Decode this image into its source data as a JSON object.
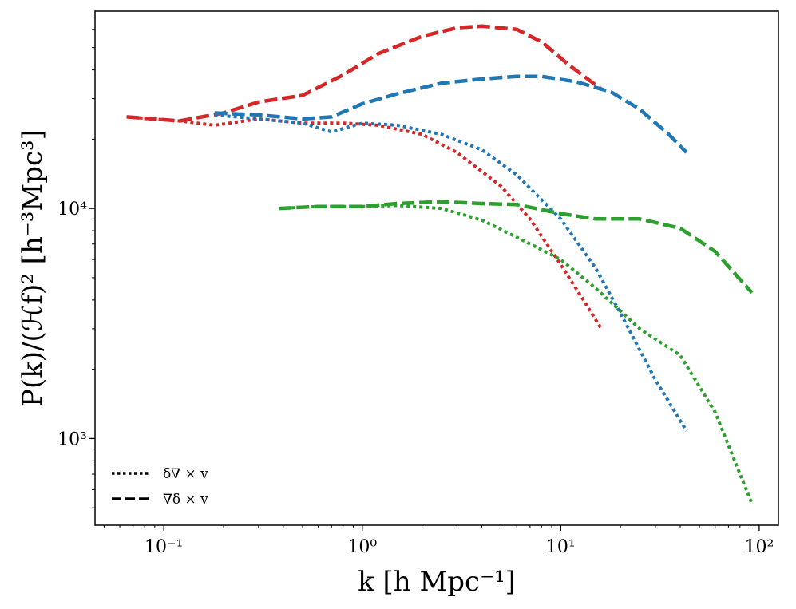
{
  "chart_data": {
    "type": "line",
    "xscale": "log",
    "yscale": "log",
    "xlim": [
      0.045,
      125
    ],
    "ylim": [
      420,
      72000
    ],
    "xlabel": "k [h Mpc⁻¹]",
    "ylabel": "P(k)/(ℋf)² [h⁻³Mpc³]",
    "x_ticks": [
      {
        "value": 0.1,
        "label": "10⁻¹"
      },
      {
        "value": 1,
        "label": "10⁰"
      },
      {
        "value": 10,
        "label": "10¹"
      },
      {
        "value": 100,
        "label": "10²"
      }
    ],
    "y_ticks": [
      {
        "value": 1000,
        "label": "10³"
      },
      {
        "value": 10000,
        "label": "10⁴"
      }
    ],
    "legend": {
      "position": "lower-left",
      "entries": [
        {
          "style": "dotted",
          "label": "δ∇ × v"
        },
        {
          "style": "dashed",
          "label": "∇δ × v"
        }
      ]
    },
    "series": [
      {
        "name": "red-dashed",
        "color": "#d62728",
        "style": "dashed",
        "x": [
          0.065,
          0.12,
          0.2,
          0.3,
          0.5,
          0.8,
          1.2,
          2,
          3,
          4,
          6,
          8,
          11,
          16
        ],
        "y": [
          25000,
          24000,
          26000,
          29000,
          31000,
          38000,
          47000,
          56000,
          61000,
          62000,
          60000,
          53000,
          42000,
          33000
        ]
      },
      {
        "name": "red-dotted",
        "color": "#d62728",
        "style": "dotted",
        "x": [
          0.065,
          0.12,
          0.18,
          0.3,
          0.5,
          0.8,
          1.2,
          2,
          3,
          5,
          7,
          10,
          13,
          16
        ],
        "y": [
          25000,
          24000,
          23000,
          24500,
          23500,
          23500,
          23000,
          21000,
          17500,
          12500,
          9000,
          5700,
          4000,
          3000
        ]
      },
      {
        "name": "blue-dashed",
        "color": "#1f77b4",
        "style": "dashed",
        "x": [
          0.18,
          0.3,
          0.5,
          0.7,
          1,
          1.5,
          2.5,
          4,
          6,
          8,
          12,
          18,
          25,
          35,
          43
        ],
        "y": [
          26000,
          25500,
          24500,
          25000,
          28500,
          31500,
          35000,
          36500,
          37500,
          37500,
          35500,
          32000,
          27000,
          21000,
          17500
        ]
      },
      {
        "name": "blue-dotted",
        "color": "#1f77b4",
        "style": "dotted",
        "x": [
          0.18,
          0.3,
          0.5,
          0.7,
          1,
          1.5,
          2.5,
          4,
          6,
          10,
          15,
          20,
          30,
          43
        ],
        "y": [
          25500,
          24500,
          23500,
          21500,
          23500,
          23000,
          21000,
          18000,
          14000,
          9000,
          5500,
          3500,
          1800,
          1080
        ]
      },
      {
        "name": "green-dashed",
        "color": "#2ca02c",
        "style": "dashed",
        "x": [
          0.38,
          0.6,
          1,
          1.5,
          2.5,
          4,
          6,
          10,
          15,
          25,
          40,
          60,
          92
        ],
        "y": [
          10000,
          10200,
          10200,
          10500,
          10700,
          10500,
          10400,
          9500,
          9000,
          9000,
          8200,
          6500,
          4300
        ]
      },
      {
        "name": "green-dotted",
        "color": "#2ca02c",
        "style": "dotted",
        "x": [
          0.38,
          0.6,
          1,
          1.5,
          2.5,
          4,
          6,
          10,
          15,
          25,
          40,
          60,
          92
        ],
        "y": [
          10000,
          10200,
          10200,
          10300,
          10000,
          8900,
          7500,
          6000,
          4500,
          3000,
          2300,
          1300,
          520
        ]
      }
    ]
  }
}
